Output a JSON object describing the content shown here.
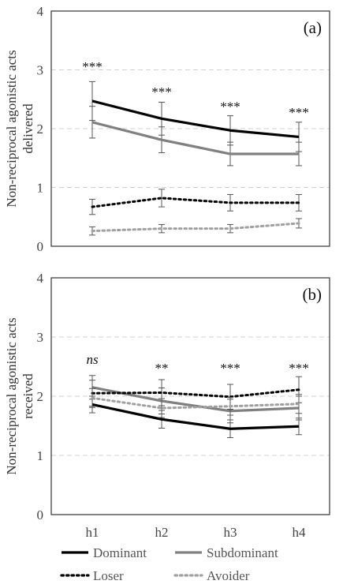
{
  "chart_data": [
    {
      "type": "line",
      "title": "(a)",
      "ylabel": "Non-reciprocal agonistic acts delivered",
      "ylabel_lines": [
        "Non-reciprocal agonistic acts",
        "delivered"
      ],
      "ylim": [
        0,
        4
      ],
      "yticks": [
        "0",
        "1",
        "2",
        "3",
        "4"
      ],
      "grid": "horizontal dashed",
      "categories": [
        "h1",
        "h2",
        "h3",
        "h4"
      ],
      "series": [
        {
          "name": "Dominant",
          "values": [
            2.47,
            2.17,
            1.97,
            1.86
          ],
          "errors": [
            0.33,
            0.28,
            0.25,
            0.25
          ]
        },
        {
          "name": "Subdominant",
          "values": [
            2.11,
            1.81,
            1.57,
            1.57
          ],
          "errors": [
            0.27,
            0.22,
            0.2,
            0.2
          ]
        },
        {
          "name": "Loser",
          "values": [
            0.67,
            0.82,
            0.74,
            0.74
          ],
          "errors": [
            0.13,
            0.15,
            0.14,
            0.14
          ]
        },
        {
          "name": "Avoider",
          "values": [
            0.26,
            0.3,
            0.3,
            0.39
          ],
          "errors": [
            0.07,
            0.07,
            0.07,
            0.08
          ]
        }
      ],
      "annotations": [
        "***",
        "***",
        "***",
        "***"
      ],
      "annotation_y": [
        2.98,
        2.55,
        2.3,
        2.2
      ]
    },
    {
      "type": "line",
      "title": "(b)",
      "ylabel": "Non-reciprocal agonistic acts received",
      "ylabel_lines": [
        "Non-reciprocal agonistic acts",
        "received"
      ],
      "ylim": [
        0,
        4
      ],
      "yticks": [
        "0",
        "1",
        "2",
        "3",
        "4"
      ],
      "grid": "horizontal dashed",
      "categories": [
        "h1",
        "h2",
        "h3",
        "h4"
      ],
      "series": [
        {
          "name": "Dominant",
          "values": [
            1.86,
            1.61,
            1.45,
            1.49
          ],
          "errors": [
            0.14,
            0.15,
            0.15,
            0.14
          ]
        },
        {
          "name": "Subdominant",
          "values": [
            2.15,
            1.92,
            1.75,
            1.8
          ],
          "errors": [
            0.2,
            0.22,
            0.2,
            0.2
          ]
        },
        {
          "name": "Loser",
          "values": [
            2.05,
            2.06,
            1.99,
            2.11
          ],
          "errors": [
            0.22,
            0.22,
            0.21,
            0.22
          ]
        },
        {
          "name": "Avoider",
          "values": [
            1.97,
            1.8,
            1.83,
            1.87
          ],
          "errors": [
            0.16,
            0.16,
            0.15,
            0.16
          ]
        }
      ],
      "annotations": [
        "ns",
        "**",
        "***",
        "***"
      ],
      "annotation_y": [
        2.55,
        2.4,
        2.4,
        2.4
      ]
    }
  ],
  "legend": {
    "placement": "bottom",
    "items": [
      {
        "name": "Dominant",
        "color": "#000000",
        "style": "solid"
      },
      {
        "name": "Subdominant",
        "color": "#808080",
        "style": "solid"
      },
      {
        "name": "Loser",
        "color": "#000000",
        "style": "dotted"
      },
      {
        "name": "Avoider",
        "color": "#a0a0a0",
        "style": "dotted"
      }
    ]
  },
  "colors": {
    "dominant": "#000000",
    "subdominant": "#808080",
    "loser": "#000000",
    "avoider": "#a0a0a0",
    "grid": "#d0d0d0",
    "frame": "#333333"
  }
}
